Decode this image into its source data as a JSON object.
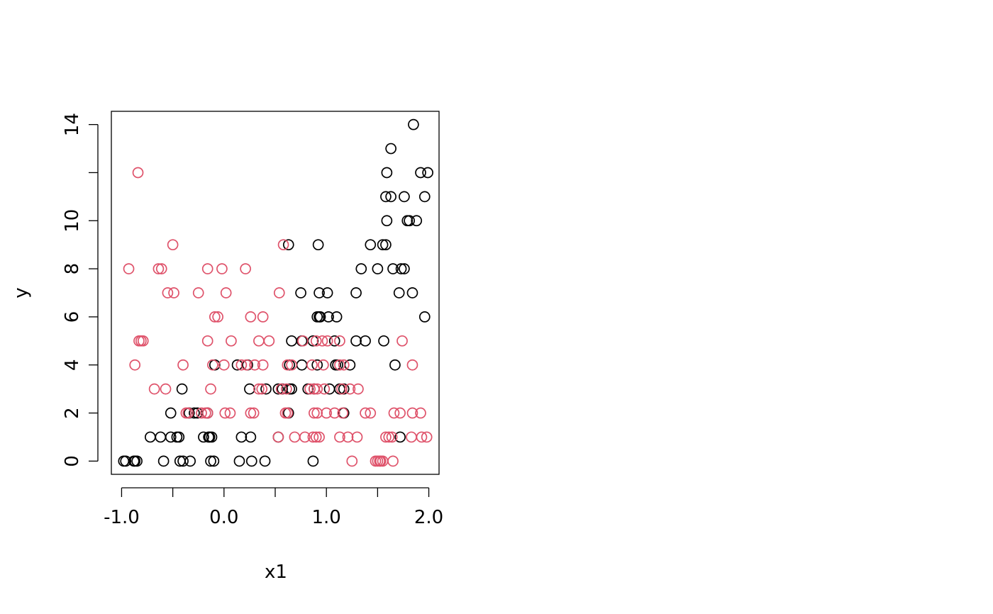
{
  "chart_data": {
    "type": "scatter",
    "xlabel": "x1",
    "ylabel": "y",
    "xlim": [
      -1.1,
      2.1
    ],
    "ylim": [
      -0.55,
      14.55
    ],
    "x_ticks": [
      -1.0,
      -0.5,
      0.0,
      0.5,
      1.0,
      1.5,
      2.0
    ],
    "x_tick_labels": [
      "-1.0",
      "0.0",
      "1.0",
      "2.0"
    ],
    "x_tick_label_values": [
      -1.0,
      0.0,
      1.0,
      2.0
    ],
    "y_ticks": [
      0,
      2,
      4,
      6,
      8,
      10,
      12,
      14
    ],
    "y_tick_labels": [
      "0",
      "2",
      "4",
      "6",
      "8",
      "10",
      "14"
    ],
    "y_tick_label_values": [
      0,
      2,
      4,
      6,
      8,
      10,
      14
    ],
    "grid": false,
    "legend": "none",
    "series": [
      {
        "color": "#000000",
        "points": [
          [
            1.85,
            14
          ],
          [
            1.63,
            13
          ],
          [
            1.59,
            12
          ],
          [
            1.92,
            12
          ],
          [
            1.99,
            12
          ],
          [
            1.58,
            11
          ],
          [
            1.63,
            11
          ],
          [
            1.76,
            11
          ],
          [
            1.96,
            11
          ],
          [
            1.59,
            10
          ],
          [
            1.79,
            10
          ],
          [
            1.81,
            10
          ],
          [
            1.88,
            10
          ],
          [
            0.63,
            9
          ],
          [
            0.92,
            9
          ],
          [
            1.43,
            9
          ],
          [
            1.55,
            9
          ],
          [
            1.58,
            9
          ],
          [
            1.34,
            8
          ],
          [
            1.5,
            8
          ],
          [
            1.65,
            8
          ],
          [
            1.73,
            8
          ],
          [
            1.76,
            8
          ],
          [
            0.75,
            7
          ],
          [
            0.93,
            7
          ],
          [
            1.01,
            7
          ],
          [
            1.29,
            7
          ],
          [
            1.71,
            7
          ],
          [
            1.84,
            7
          ],
          [
            0.91,
            6
          ],
          [
            0.93,
            6
          ],
          [
            0.94,
            6
          ],
          [
            1.02,
            6
          ],
          [
            1.1,
            6
          ],
          [
            1.96,
            6
          ],
          [
            0.66,
            5
          ],
          [
            0.76,
            5
          ],
          [
            0.87,
            5
          ],
          [
            1.08,
            5
          ],
          [
            1.29,
            5
          ],
          [
            1.38,
            5
          ],
          [
            1.56,
            5
          ],
          [
            -0.09,
            4
          ],
          [
            0.13,
            4
          ],
          [
            0.23,
            4
          ],
          [
            0.64,
            4
          ],
          [
            0.76,
            4
          ],
          [
            0.91,
            4
          ],
          [
            1.09,
            4
          ],
          [
            1.11,
            4
          ],
          [
            1.23,
            4
          ],
          [
            1.67,
            4
          ],
          [
            -0.41,
            3
          ],
          [
            0.25,
            3
          ],
          [
            0.41,
            3
          ],
          [
            0.53,
            3
          ],
          [
            0.57,
            3
          ],
          [
            0.64,
            3
          ],
          [
            0.66,
            3
          ],
          [
            0.82,
            3
          ],
          [
            0.88,
            3
          ],
          [
            1.03,
            3
          ],
          [
            1.13,
            3
          ],
          [
            1.17,
            3
          ],
          [
            -0.52,
            2
          ],
          [
            -0.34,
            2
          ],
          [
            -0.29,
            2
          ],
          [
            -0.26,
            2
          ],
          [
            -0.16,
            2
          ],
          [
            0.63,
            2
          ],
          [
            1.17,
            2
          ],
          [
            -0.72,
            1
          ],
          [
            -0.62,
            1
          ],
          [
            -0.52,
            1
          ],
          [
            -0.46,
            1
          ],
          [
            -0.44,
            1
          ],
          [
            -0.2,
            1
          ],
          [
            -0.15,
            1
          ],
          [
            -0.14,
            1
          ],
          [
            -0.12,
            1
          ],
          [
            0.17,
            1
          ],
          [
            0.26,
            1
          ],
          [
            0.53,
            1
          ],
          [
            1.72,
            1
          ],
          [
            -0.98,
            0
          ],
          [
            -0.96,
            0
          ],
          [
            -0.88,
            0
          ],
          [
            -0.87,
            0
          ],
          [
            -0.85,
            0
          ],
          [
            -0.59,
            0
          ],
          [
            -0.43,
            0
          ],
          [
            -0.4,
            0
          ],
          [
            -0.33,
            0
          ],
          [
            -0.13,
            0
          ],
          [
            -0.1,
            0
          ],
          [
            0.15,
            0
          ],
          [
            0.27,
            0
          ],
          [
            0.4,
            0
          ],
          [
            0.87,
            0
          ]
        ]
      },
      {
        "color": "#DF536B",
        "points": [
          [
            -0.84,
            12
          ],
          [
            -0.5,
            9
          ],
          [
            0.58,
            9
          ],
          [
            -0.93,
            8
          ],
          [
            -0.64,
            8
          ],
          [
            -0.61,
            8
          ],
          [
            -0.16,
            8
          ],
          [
            -0.02,
            8
          ],
          [
            0.21,
            8
          ],
          [
            -0.55,
            7
          ],
          [
            -0.49,
            7
          ],
          [
            -0.25,
            7
          ],
          [
            0.02,
            7
          ],
          [
            0.54,
            7
          ],
          [
            -0.09,
            6
          ],
          [
            -0.06,
            6
          ],
          [
            0.26,
            6
          ],
          [
            0.38,
            6
          ],
          [
            -0.83,
            5
          ],
          [
            -0.81,
            5
          ],
          [
            -0.79,
            5
          ],
          [
            -0.16,
            5
          ],
          [
            0.07,
            5
          ],
          [
            0.34,
            5
          ],
          [
            0.44,
            5
          ],
          [
            0.77,
            5
          ],
          [
            0.9,
            5
          ],
          [
            0.96,
            5
          ],
          [
            1.01,
            5
          ],
          [
            1.13,
            5
          ],
          [
            1.74,
            5
          ],
          [
            -0.87,
            4
          ],
          [
            -0.4,
            4
          ],
          [
            -0.11,
            4
          ],
          [
            0.0,
            4
          ],
          [
            0.17,
            4
          ],
          [
            0.22,
            4
          ],
          [
            0.3,
            4
          ],
          [
            0.38,
            4
          ],
          [
            0.62,
            4
          ],
          [
            0.66,
            4
          ],
          [
            0.86,
            4
          ],
          [
            0.97,
            4
          ],
          [
            1.13,
            4
          ],
          [
            1.17,
            4
          ],
          [
            1.84,
            4
          ],
          [
            -0.68,
            3
          ],
          [
            -0.57,
            3
          ],
          [
            -0.13,
            3
          ],
          [
            0.34,
            3
          ],
          [
            0.37,
            3
          ],
          [
            0.56,
            3
          ],
          [
            0.61,
            3
          ],
          [
            0.84,
            3
          ],
          [
            0.88,
            3
          ],
          [
            0.91,
            3
          ],
          [
            0.98,
            3
          ],
          [
            1.15,
            3
          ],
          [
            1.23,
            3
          ],
          [
            1.31,
            3
          ],
          [
            -0.37,
            2
          ],
          [
            -0.35,
            2
          ],
          [
            -0.22,
            2
          ],
          [
            -0.18,
            2
          ],
          [
            -0.16,
            2
          ],
          [
            0.01,
            2
          ],
          [
            0.06,
            2
          ],
          [
            0.26,
            2
          ],
          [
            0.29,
            2
          ],
          [
            0.6,
            2
          ],
          [
            0.62,
            2
          ],
          [
            0.88,
            2
          ],
          [
            0.91,
            2
          ],
          [
            1.0,
            2
          ],
          [
            1.08,
            2
          ],
          [
            1.16,
            2
          ],
          [
            1.38,
            2
          ],
          [
            1.43,
            2
          ],
          [
            1.66,
            2
          ],
          [
            1.72,
            2
          ],
          [
            1.84,
            2
          ],
          [
            1.92,
            2
          ],
          [
            0.53,
            1
          ],
          [
            0.69,
            1
          ],
          [
            0.79,
            1
          ],
          [
            0.87,
            1
          ],
          [
            0.9,
            1
          ],
          [
            0.93,
            1
          ],
          [
            1.13,
            1
          ],
          [
            1.21,
            1
          ],
          [
            1.3,
            1
          ],
          [
            1.58,
            1
          ],
          [
            1.61,
            1
          ],
          [
            1.64,
            1
          ],
          [
            1.83,
            1
          ],
          [
            1.93,
            1
          ],
          [
            1.98,
            1
          ],
          [
            1.25,
            0
          ],
          [
            1.48,
            0
          ],
          [
            1.5,
            0
          ],
          [
            1.52,
            0
          ],
          [
            1.53,
            0
          ],
          [
            1.55,
            0
          ],
          [
            1.65,
            0
          ]
        ]
      }
    ]
  }
}
